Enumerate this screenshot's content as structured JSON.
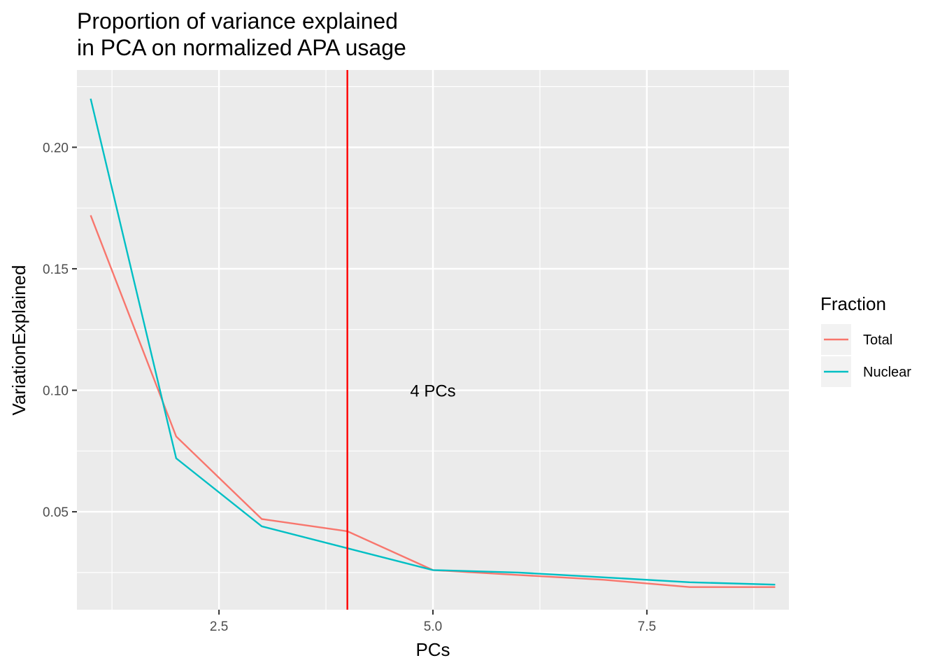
{
  "chart_data": {
    "type": "line",
    "title_lines": [
      "Proportion of variance explained",
      "in PCA on normalized APA usage"
    ],
    "xlabel": "PCs",
    "ylabel": "VariationExplained",
    "xlim": [
      0.84,
      9.16
    ],
    "ylim": [
      0.0097,
      0.2318
    ],
    "x_ticks": [
      2.5,
      5.0,
      7.5
    ],
    "x_tick_labels": [
      "2.5",
      "5.0",
      "7.5"
    ],
    "y_ticks": [
      0.05,
      0.1,
      0.15,
      0.2
    ],
    "y_tick_labels": [
      "0.05",
      "0.10",
      "0.15",
      "0.20"
    ],
    "grid": true,
    "x": [
      1,
      2,
      3,
      4,
      5,
      6,
      7,
      8,
      9
    ],
    "series": [
      {
        "name": "Total",
        "color": "#F8766D",
        "values": [
          0.172,
          0.081,
          0.047,
          0.042,
          0.026,
          0.024,
          0.022,
          0.019,
          0.019
        ]
      },
      {
        "name": "Nuclear",
        "color": "#00BFC4",
        "values": [
          0.22,
          0.072,
          0.044,
          0.035,
          0.026,
          0.025,
          0.023,
          0.021,
          0.02
        ]
      }
    ],
    "vline": {
      "x": 4,
      "color": "#FF0000"
    },
    "annotation": {
      "text": "4 PCs",
      "x": 5.0,
      "y": 0.1
    },
    "legend": {
      "title": "Fraction",
      "position": "right"
    }
  }
}
